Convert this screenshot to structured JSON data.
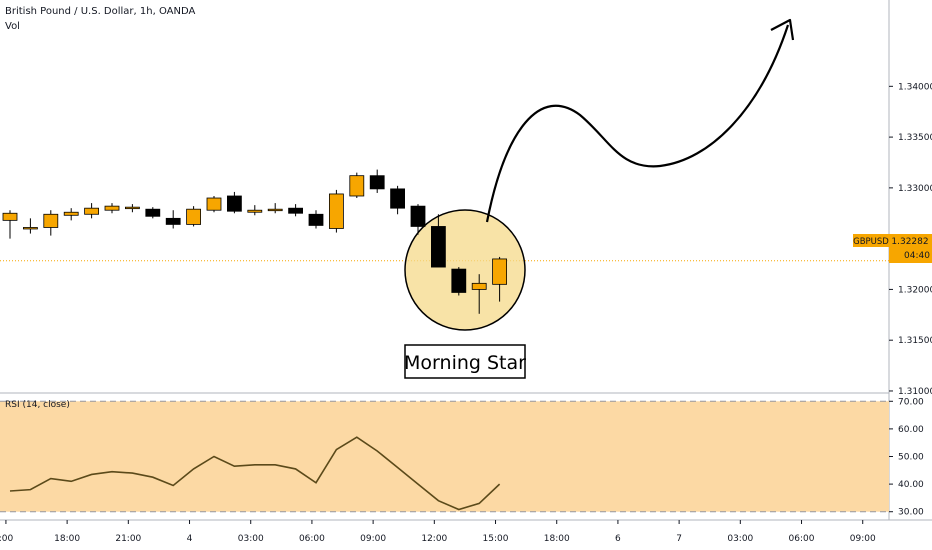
{
  "header": {
    "title": "British Pound / U.S. Dollar, 1h, OANDA",
    "vol_label": "Vol"
  },
  "price_tag": {
    "symbol": "GBPUSD",
    "price": "1.32282",
    "countdown": "04:40",
    "color": "#f7a600"
  },
  "annotation": {
    "label": "Morning Star"
  },
  "rsi_label": "RSI (14, close)",
  "colors": {
    "up": "#f7a600",
    "down": "#000000",
    "rsi_band": "#fcd9a4",
    "rsi_line": "#5b4a1a",
    "highlight": "#f5d98a"
  },
  "chart_data": [
    {
      "type": "candlestick",
      "title": "British Pound / U.S. Dollar, 1h, OANDA",
      "ylim": [
        1.3098,
        1.3485
      ],
      "y_ticks": [
        "1.34000",
        "1.33500",
        "1.33000",
        "1.32500",
        "1.32000",
        "1.31500",
        "1.31000"
      ],
      "x_ticks": [
        ":00",
        "18:00",
        "21:00",
        "4",
        "03:00",
        "06:00",
        "09:00",
        "12:00",
        "15:00",
        "18:00",
        "6",
        "7",
        "03:00",
        "06:00",
        "09:00"
      ],
      "candles": [
        {
          "o": 1.3268,
          "h": 1.3278,
          "l": 1.325,
          "c": 1.3275
        },
        {
          "o": 1.326,
          "h": 1.327,
          "l": 1.3255,
          "c": 1.3261
        },
        {
          "o": 1.3261,
          "h": 1.3278,
          "l": 1.3253,
          "c": 1.3274
        },
        {
          "o": 1.3273,
          "h": 1.328,
          "l": 1.3268,
          "c": 1.3276
        },
        {
          "o": 1.3274,
          "h": 1.3285,
          "l": 1.327,
          "c": 1.328
        },
        {
          "o": 1.3278,
          "h": 1.3285,
          "l": 1.3275,
          "c": 1.3282
        },
        {
          "o": 1.328,
          "h": 1.3284,
          "l": 1.3276,
          "c": 1.3281
        },
        {
          "o": 1.3279,
          "h": 1.3281,
          "l": 1.327,
          "c": 1.3272
        },
        {
          "o": 1.327,
          "h": 1.3278,
          "l": 1.326,
          "c": 1.3264
        },
        {
          "o": 1.3264,
          "h": 1.3282,
          "l": 1.3262,
          "c": 1.3279
        },
        {
          "o": 1.3278,
          "h": 1.3292,
          "l": 1.3276,
          "c": 1.329
        },
        {
          "o": 1.3292,
          "h": 1.3296,
          "l": 1.3275,
          "c": 1.3277
        },
        {
          "o": 1.3276,
          "h": 1.3283,
          "l": 1.3273,
          "c": 1.3278
        },
        {
          "o": 1.3279,
          "h": 1.3285,
          "l": 1.3275,
          "c": 1.3279
        },
        {
          "o": 1.328,
          "h": 1.3284,
          "l": 1.3272,
          "c": 1.3275
        },
        {
          "o": 1.3274,
          "h": 1.3278,
          "l": 1.326,
          "c": 1.3263
        },
        {
          "o": 1.326,
          "h": 1.3298,
          "l": 1.3256,
          "c": 1.3294
        },
        {
          "o": 1.3292,
          "h": 1.3315,
          "l": 1.329,
          "c": 1.3312
        },
        {
          "o": 1.3312,
          "h": 1.3318,
          "l": 1.3295,
          "c": 1.3299
        },
        {
          "o": 1.3299,
          "h": 1.3302,
          "l": 1.3274,
          "c": 1.328
        },
        {
          "o": 1.3282,
          "h": 1.3284,
          "l": 1.3254,
          "c": 1.3262
        },
        {
          "o": 1.3262,
          "h": 1.3274,
          "l": 1.3222,
          "c": 1.3222
        },
        {
          "o": 1.322,
          "h": 1.3222,
          "l": 1.3194,
          "c": 1.3197
        },
        {
          "o": 1.32,
          "h": 1.3215,
          "l": 1.3176,
          "c": 1.3206
        },
        {
          "o": 1.3205,
          "h": 1.3232,
          "l": 1.3188,
          "c": 1.323
        }
      ],
      "last_price": 1.32282
    },
    {
      "type": "line",
      "title": "RSI (14, close)",
      "ylim": [
        27,
        73
      ],
      "y_ticks": [
        "70.00",
        "60.00",
        "50.00",
        "40.00",
        "30.00"
      ],
      "band": [
        30,
        70
      ],
      "values": [
        37.5,
        38,
        42,
        41,
        43.5,
        44.5,
        44,
        42.5,
        39.5,
        45.5,
        50,
        46.5,
        47,
        47,
        45.5,
        40.5,
        52.5,
        57,
        52,
        46,
        40,
        34,
        30.8,
        33,
        40
      ]
    }
  ]
}
